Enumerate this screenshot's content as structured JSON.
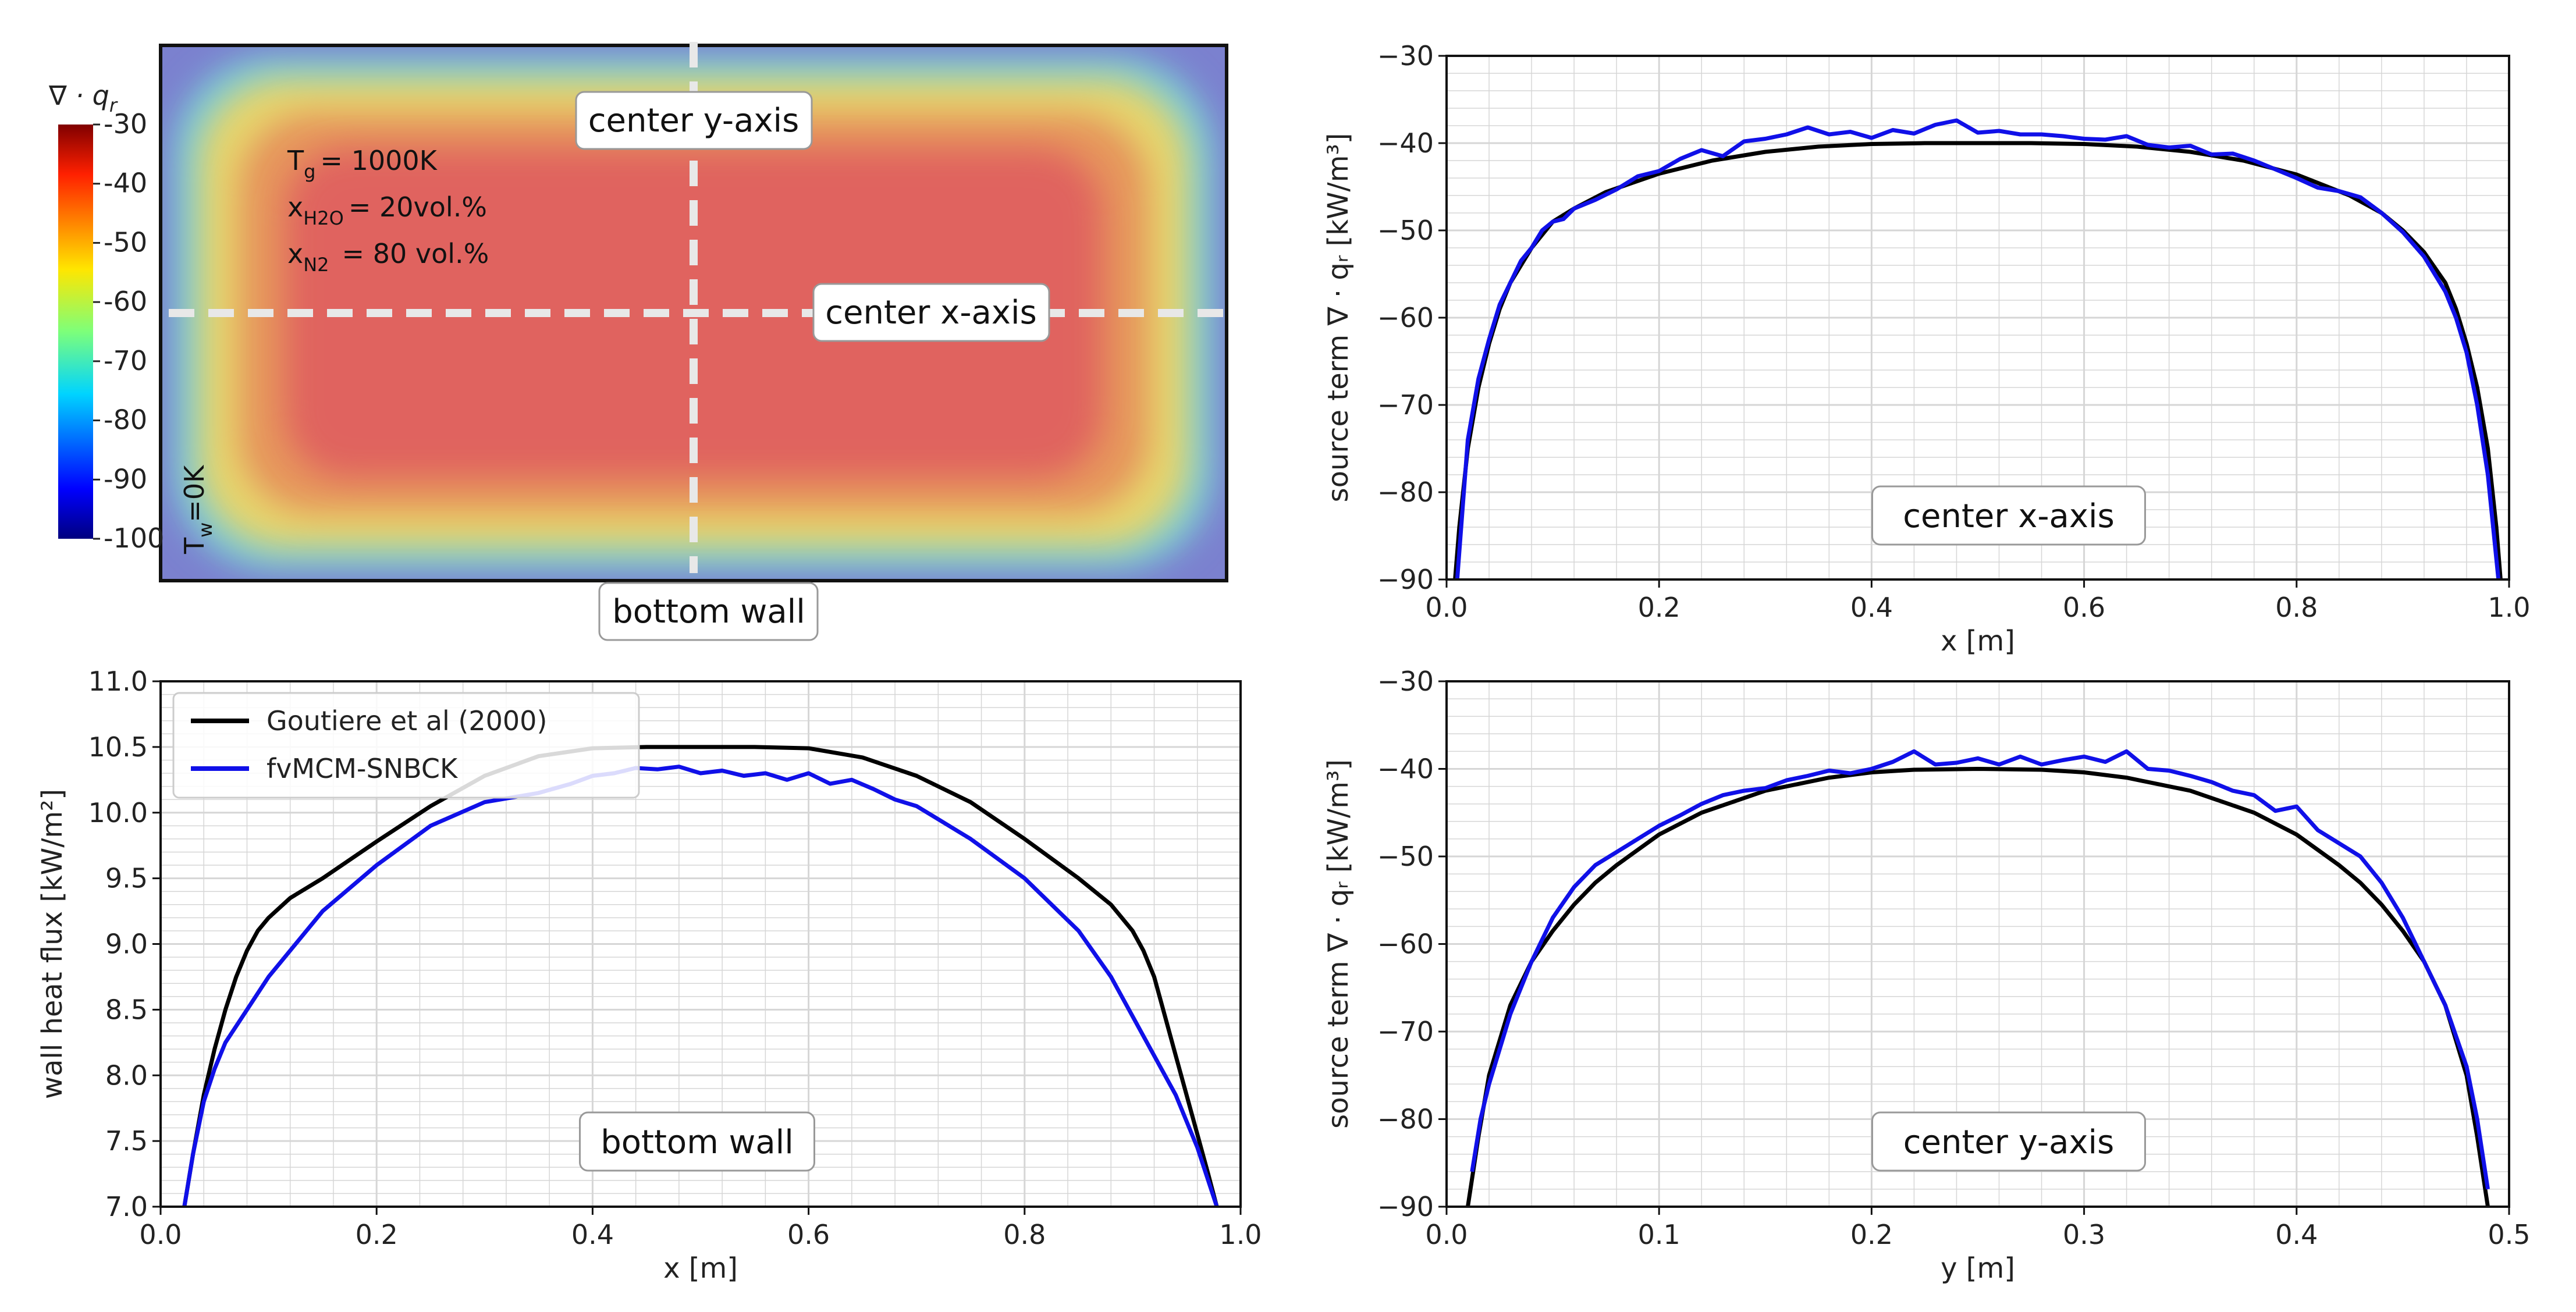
{
  "colors": {
    "reference": "#000000",
    "model": "#1010e8",
    "grid": "#d6d6d6",
    "guide": "#e0e0e0"
  },
  "heatmap": {
    "colorbar_title": "∇ · q",
    "colorbar_title_sub": "r",
    "colorbar_ticks": [
      "-30",
      "-40",
      "-50",
      "-60",
      "-70",
      "-80",
      "-90",
      "-100"
    ],
    "gas_temperature": {
      "label": "T",
      "sub": "g",
      "value": "= 1000K"
    },
    "h2o_fraction": {
      "label": "x",
      "sub": "H2O",
      "value": "= 20vol.%"
    },
    "n2_fraction": {
      "label": "x",
      "sub": "N2",
      "value": "= 80 vol.%"
    },
    "wall_temperature": {
      "label": "T",
      "sub": "w",
      "value": "=0K"
    },
    "guide_labels": {
      "y_axis": "center y-axis",
      "x_axis": "center x-axis",
      "wall": "bottom wall"
    }
  },
  "chart_data": [
    {
      "id": "x-axis-source",
      "type": "line",
      "panel_label": "center x-axis",
      "xlabel": "x [m]",
      "ylabel": "source term ∇ · qᵣ [kW/m³]",
      "xlim": [
        0,
        1
      ],
      "ylim": [
        -90,
        -30
      ],
      "xticks": [
        "0.0",
        "0.2",
        "0.4",
        "0.6",
        "0.8",
        "1.0"
      ],
      "yticks": [
        "−90",
        "−80",
        "−70",
        "−60",
        "−50",
        "−40",
        "−30"
      ],
      "grid": true,
      "series": [
        {
          "name": "Goutiere et al (2000)",
          "color": "#000000",
          "x": [
            0.008,
            0.012,
            0.02,
            0.03,
            0.04,
            0.05,
            0.06,
            0.08,
            0.1,
            0.12,
            0.15,
            0.2,
            0.25,
            0.3,
            0.35,
            0.4,
            0.45,
            0.5,
            0.55,
            0.6,
            0.65,
            0.7,
            0.75,
            0.8,
            0.85,
            0.88,
            0.9,
            0.92,
            0.94,
            0.95,
            0.96,
            0.97,
            0.98,
            0.988,
            0.992
          ],
          "y": [
            -90,
            -84,
            -75,
            -68,
            -63,
            -59,
            -56,
            -52,
            -49,
            -47.5,
            -45.6,
            -43.5,
            -42,
            -41,
            -40.4,
            -40.1,
            -40,
            -40,
            -40,
            -40.1,
            -40.4,
            -41,
            -42,
            -43.6,
            -46,
            -48,
            -50,
            -52.5,
            -56,
            -59,
            -63,
            -68,
            -75,
            -84,
            -90
          ]
        },
        {
          "name": "fvMCM-SNBCK",
          "color": "#1010e8",
          "x": [
            0.01,
            0.015,
            0.02,
            0.03,
            0.04,
            0.05,
            0.06,
            0.07,
            0.08,
            0.09,
            0.1,
            0.11,
            0.12,
            0.14,
            0.16,
            0.18,
            0.2,
            0.22,
            0.24,
            0.26,
            0.28,
            0.3,
            0.32,
            0.34,
            0.36,
            0.38,
            0.4,
            0.42,
            0.44,
            0.46,
            0.48,
            0.5,
            0.52,
            0.54,
            0.56,
            0.58,
            0.6,
            0.62,
            0.64,
            0.66,
            0.68,
            0.7,
            0.72,
            0.74,
            0.76,
            0.78,
            0.8,
            0.82,
            0.84,
            0.86,
            0.88,
            0.9,
            0.92,
            0.94,
            0.95,
            0.96,
            0.97,
            0.98,
            0.985,
            0.99
          ],
          "y": [
            -90,
            -82,
            -74,
            -67,
            -62.5,
            -58.5,
            -56,
            -53.5,
            -52,
            -50,
            -49,
            -48.7,
            -47.5,
            -46.5,
            -45.3,
            -43.8,
            -43.2,
            -41.8,
            -40.8,
            -41.5,
            -39.8,
            -39.5,
            -39,
            -38.2,
            -39,
            -38.7,
            -39.4,
            -38.5,
            -38.9,
            -37.9,
            -37.4,
            -38.8,
            -38.6,
            -39,
            -39,
            -39.2,
            -39.5,
            -39.6,
            -39.2,
            -40.2,
            -40.5,
            -40.3,
            -41.3,
            -41.2,
            -42,
            -43,
            -44,
            -45.1,
            -45.5,
            -46.2,
            -48,
            -50.2,
            -53,
            -57,
            -60,
            -64,
            -70,
            -78,
            -84,
            -90
          ]
        }
      ]
    },
    {
      "id": "wall-heat-flux",
      "type": "line",
      "panel_label": "bottom wall",
      "xlabel": "x [m]",
      "ylabel": "wall heat flux [kW/m²]",
      "xlim": [
        0,
        1
      ],
      "ylim": [
        7,
        11
      ],
      "xticks": [
        "0.0",
        "0.2",
        "0.4",
        "0.6",
        "0.8",
        "1.0"
      ],
      "yticks": [
        "7.0",
        "7.5",
        "8.0",
        "8.5",
        "9.0",
        "9.5",
        "10.0",
        "10.5",
        "11.0"
      ],
      "grid": true,
      "legend": "top-left",
      "series": [
        {
          "name": "Goutiere et al (2000)",
          "color": "#000000",
          "x": [
            0.022,
            0.03,
            0.04,
            0.05,
            0.06,
            0.07,
            0.08,
            0.09,
            0.1,
            0.12,
            0.15,
            0.2,
            0.25,
            0.3,
            0.35,
            0.4,
            0.45,
            0.5,
            0.55,
            0.6,
            0.65,
            0.7,
            0.75,
            0.8,
            0.85,
            0.88,
            0.9,
            0.91,
            0.92,
            0.93,
            0.94,
            0.95,
            0.96,
            0.97,
            0.978
          ],
          "y": [
            7.0,
            7.4,
            7.85,
            8.2,
            8.5,
            8.75,
            8.95,
            9.1,
            9.2,
            9.35,
            9.5,
            9.78,
            10.05,
            10.28,
            10.43,
            10.49,
            10.5,
            10.5,
            10.5,
            10.49,
            10.42,
            10.28,
            10.08,
            9.8,
            9.5,
            9.3,
            9.1,
            8.95,
            8.75,
            8.45,
            8.15,
            7.85,
            7.55,
            7.25,
            7.0
          ]
        },
        {
          "name": "fvMCM-SNBCK",
          "color": "#1010e8",
          "x": [
            0.022,
            0.03,
            0.04,
            0.05,
            0.06,
            0.08,
            0.1,
            0.12,
            0.15,
            0.2,
            0.25,
            0.3,
            0.35,
            0.38,
            0.4,
            0.42,
            0.44,
            0.46,
            0.48,
            0.5,
            0.52,
            0.54,
            0.56,
            0.58,
            0.6,
            0.62,
            0.64,
            0.66,
            0.68,
            0.7,
            0.72,
            0.75,
            0.8,
            0.85,
            0.88,
            0.9,
            0.92,
            0.94,
            0.95,
            0.96,
            0.97,
            0.978
          ],
          "y": [
            7.0,
            7.4,
            7.8,
            8.05,
            8.25,
            8.5,
            8.75,
            8.95,
            9.25,
            9.6,
            9.9,
            10.08,
            10.15,
            10.22,
            10.28,
            10.3,
            10.34,
            10.33,
            10.35,
            10.3,
            10.32,
            10.28,
            10.3,
            10.25,
            10.3,
            10.22,
            10.25,
            10.18,
            10.1,
            10.05,
            9.95,
            9.8,
            9.5,
            9.1,
            8.75,
            8.45,
            8.15,
            7.85,
            7.65,
            7.45,
            7.2,
            7.0
          ]
        }
      ]
    },
    {
      "id": "y-axis-source",
      "type": "line",
      "panel_label": "center y-axis",
      "xlabel": "y [m]",
      "ylabel": "source term ∇ · qᵣ [kW/m³]",
      "xlim": [
        0,
        0.5
      ],
      "ylim": [
        -90,
        -30
      ],
      "xticks": [
        "0.0",
        "0.1",
        "0.2",
        "0.3",
        "0.4",
        "0.5"
      ],
      "yticks": [
        "−90",
        "−80",
        "−70",
        "−60",
        "−50",
        "−40",
        "−30"
      ],
      "grid": true,
      "series": [
        {
          "name": "Goutiere et al (2000)",
          "color": "#000000",
          "x": [
            0.01,
            0.015,
            0.02,
            0.03,
            0.04,
            0.05,
            0.06,
            0.07,
            0.08,
            0.1,
            0.12,
            0.15,
            0.18,
            0.2,
            0.22,
            0.25,
            0.28,
            0.3,
            0.32,
            0.35,
            0.38,
            0.4,
            0.42,
            0.43,
            0.44,
            0.45,
            0.46,
            0.47,
            0.48,
            0.485,
            0.49
          ],
          "y": [
            -90,
            -82,
            -75,
            -67,
            -62,
            -58.5,
            -55.5,
            -53,
            -51,
            -47.5,
            -45,
            -42.5,
            -41,
            -40.4,
            -40.1,
            -40,
            -40.1,
            -40.4,
            -41,
            -42.5,
            -45,
            -47.5,
            -51,
            -53,
            -55.5,
            -58.5,
            -62,
            -67,
            -75,
            -82,
            -90
          ]
        },
        {
          "name": "fvMCM-SNBCK",
          "color": "#1010e8",
          "x": [
            0.012,
            0.016,
            0.02,
            0.03,
            0.04,
            0.05,
            0.06,
            0.07,
            0.08,
            0.09,
            0.1,
            0.11,
            0.12,
            0.13,
            0.14,
            0.15,
            0.16,
            0.17,
            0.18,
            0.19,
            0.2,
            0.21,
            0.22,
            0.23,
            0.24,
            0.25,
            0.26,
            0.27,
            0.28,
            0.29,
            0.3,
            0.31,
            0.32,
            0.33,
            0.34,
            0.35,
            0.36,
            0.37,
            0.38,
            0.39,
            0.4,
            0.41,
            0.42,
            0.43,
            0.44,
            0.45,
            0.46,
            0.47,
            0.48,
            0.485,
            0.49
          ],
          "y": [
            -86,
            -80,
            -76,
            -68,
            -62,
            -57,
            -53.5,
            -51,
            -49.5,
            -48,
            -46.5,
            -45.3,
            -44,
            -43,
            -42.5,
            -42.2,
            -41.3,
            -40.8,
            -40.2,
            -40.5,
            -40,
            -39.2,
            -38,
            -39.5,
            -39.3,
            -38.8,
            -39.5,
            -38.6,
            -39.5,
            -39,
            -38.6,
            -39.2,
            -38,
            -40,
            -40.2,
            -40.8,
            -41.5,
            -42.5,
            -43,
            -44.8,
            -44.3,
            -47,
            -48.5,
            -50,
            -53,
            -57,
            -62,
            -67,
            -74,
            -80,
            -88
          ]
        }
      ]
    }
  ]
}
